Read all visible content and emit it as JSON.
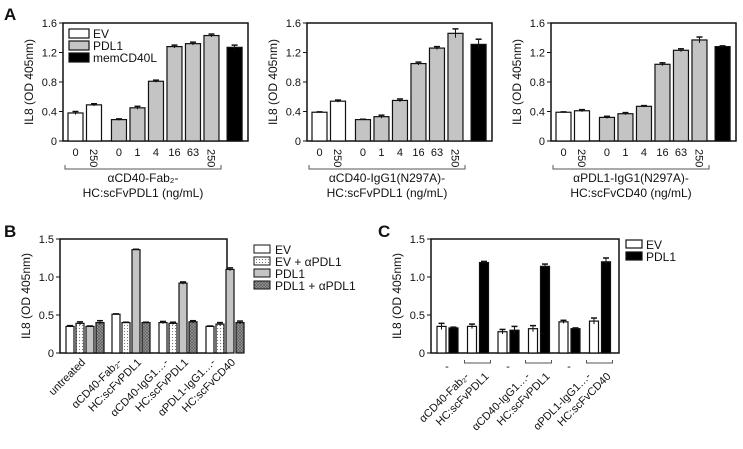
{
  "panel_letters": [
    "A",
    "B",
    "C"
  ],
  "colors": {
    "EV": "#ffffff",
    "PDL1_A": "#c4c4c4",
    "memCD40L": "#000000",
    "PDL1_B": "#c4c4c4",
    "PDL1_C": "#000000",
    "outline": "#111111"
  },
  "chart_data": [
    {
      "panel": "A",
      "type": "bar",
      "ylabel": "IL8 (OD 405nm)",
      "ylim": [
        0,
        1.6
      ],
      "yticks": [
        "0",
        "0.4",
        "0.8",
        "1.2",
        "1.6"
      ],
      "legend": [
        "EV",
        "PDL1",
        "memCD40L"
      ],
      "legend_placement": "top-left",
      "tick_labels": [
        "0",
        "250",
        "0",
        "1",
        "4",
        "16",
        "63",
        "250",
        ""
      ],
      "series_of_bar": [
        "EV",
        "EV",
        "PDL1",
        "PDL1",
        "PDL1",
        "PDL1",
        "PDL1",
        "PDL1",
        "memCD40L"
      ],
      "values": [
        0.38,
        0.49,
        0.29,
        0.45,
        0.81,
        1.28,
        1.32,
        1.43,
        1.27
      ],
      "errors": [
        0.02,
        0.015,
        0.01,
        0.02,
        0.015,
        0.02,
        0.02,
        0.02,
        0.03
      ],
      "xlabel": [
        "αCD40-Fab₂-",
        "HC:scFvPDL1 (ng/mL)"
      ]
    },
    {
      "panel": "A",
      "type": "bar",
      "ylabel": "IL8 (OD 405nm)",
      "ylim": [
        0,
        1.6
      ],
      "yticks": [
        "0",
        "0.4",
        "0.8",
        "1.2",
        "1.6"
      ],
      "tick_labels": [
        "0",
        "250",
        "0",
        "1",
        "4",
        "16",
        "63",
        "250",
        ""
      ],
      "series_of_bar": [
        "EV",
        "EV",
        "PDL1",
        "PDL1",
        "PDL1",
        "PDL1",
        "PDL1",
        "PDL1",
        "memCD40L"
      ],
      "values": [
        0.39,
        0.54,
        0.29,
        0.33,
        0.55,
        1.05,
        1.26,
        1.46,
        1.31
      ],
      "errors": [
        0.005,
        0.015,
        0.005,
        0.02,
        0.02,
        0.02,
        0.02,
        0.06,
        0.07
      ],
      "xlabel": [
        "αCD40-IgG1(N297A)-",
        "HC:scFvPDL1 (ng/mL)"
      ]
    },
    {
      "panel": "A",
      "type": "bar",
      "ylabel": "IL8 (OD 405nm)",
      "ylim": [
        0,
        1.6
      ],
      "yticks": [
        "0",
        "0.4",
        "0.8",
        "1.2",
        "1.6"
      ],
      "tick_labels": [
        "0",
        "250",
        "0",
        "1",
        "4",
        "16",
        "63",
        "250",
        ""
      ],
      "series_of_bar": [
        "EV",
        "EV",
        "PDL1",
        "PDL1",
        "PDL1",
        "PDL1",
        "PDL1",
        "PDL1",
        "memCD40L"
      ],
      "values": [
        0.39,
        0.41,
        0.32,
        0.37,
        0.47,
        1.04,
        1.23,
        1.37,
        1.28
      ],
      "errors": [
        0.005,
        0.015,
        0.015,
        0.015,
        0.01,
        0.02,
        0.02,
        0.04,
        0.01
      ],
      "xlabel": [
        "αPDL1-IgG1(N297A)-",
        "HC:scFvCD40 (ng/mL)"
      ]
    },
    {
      "panel": "B",
      "type": "bar",
      "ylabel": "IL8 (OD 405nm)",
      "ylim": [
        0,
        1.5
      ],
      "yticks": [
        "0",
        "0.5",
        "1.0",
        "1.5"
      ],
      "legend_placement": "right",
      "categories": [
        "untreated",
        "αCD40-Fab₂-HC:scFvPDL1",
        "αCD40-IgG1...-HC:scFvPDL1",
        "αPDL1-IgG1...-HC:scFvCD40"
      ],
      "category_lines": [
        [
          "untreated"
        ],
        [
          "αCD40-Fab₂-",
          "HC:scFvPDL1"
        ],
        [
          "αCD40-IgG1…-",
          "HC:scFvPDL1"
        ],
        [
          "αPDL1-IgG1…-",
          "HC:scFvCD40"
        ]
      ],
      "series": [
        {
          "name": "EV",
          "values": [
            0.35,
            0.51,
            0.4,
            0.35
          ],
          "errors": [
            0.01,
            0.005,
            0.015,
            0.005
          ]
        },
        {
          "name": "EV + αPDL1",
          "values": [
            0.39,
            0.4,
            0.39,
            0.38
          ],
          "errors": [
            0.02,
            0.005,
            0.015,
            0.02
          ]
        },
        {
          "name": "PDL1",
          "values": [
            0.35,
            1.36,
            0.92,
            1.1
          ],
          "errors": [
            0.005,
            0.005,
            0.015,
            0.02
          ]
        },
        {
          "name": "PDL1 + αPDL1",
          "values": [
            0.4,
            0.4,
            0.41,
            0.4
          ],
          "errors": [
            0.025,
            0.005,
            0.015,
            0.02
          ]
        }
      ]
    },
    {
      "panel": "C",
      "type": "bar",
      "ylabel": "IL8 (OD 405nm)",
      "ylim": [
        0,
        1.5
      ],
      "yticks": [
        "0",
        "0.5",
        "1.0",
        "1.5"
      ],
      "legend_placement": "right",
      "group_marks": [
        "-",
        "",
        "-",
        "",
        "-",
        ""
      ],
      "categories": [
        "-",
        "αCD40-Fab₂-HC:scFvPDL1",
        "-",
        "αCD40-IgG1...-HC:scFvPDL1",
        "-",
        "αPDL1-IgG1...-HC:scFvCD40"
      ],
      "category_lines": [
        [
          "αCD40-Fab₂-",
          "HC:scFvPDL1"
        ],
        [
          "αCD40-IgG1…-",
          "HC:scFvPDL1"
        ],
        [
          "αPDL1-IgG1…-",
          "HC:scFvCD40"
        ]
      ],
      "series": [
        {
          "name": "EV",
          "values": [
            0.35,
            0.35,
            0.28,
            0.32,
            0.41,
            0.42
          ],
          "errors": [
            0.04,
            0.03,
            0.03,
            0.04,
            0.02,
            0.04
          ]
        },
        {
          "name": "PDL1",
          "values": [
            0.33,
            1.19,
            0.3,
            1.14,
            0.32,
            1.2
          ],
          "errors": [
            0.01,
            0.015,
            0.05,
            0.03,
            0.01,
            0.05
          ]
        }
      ]
    }
  ]
}
